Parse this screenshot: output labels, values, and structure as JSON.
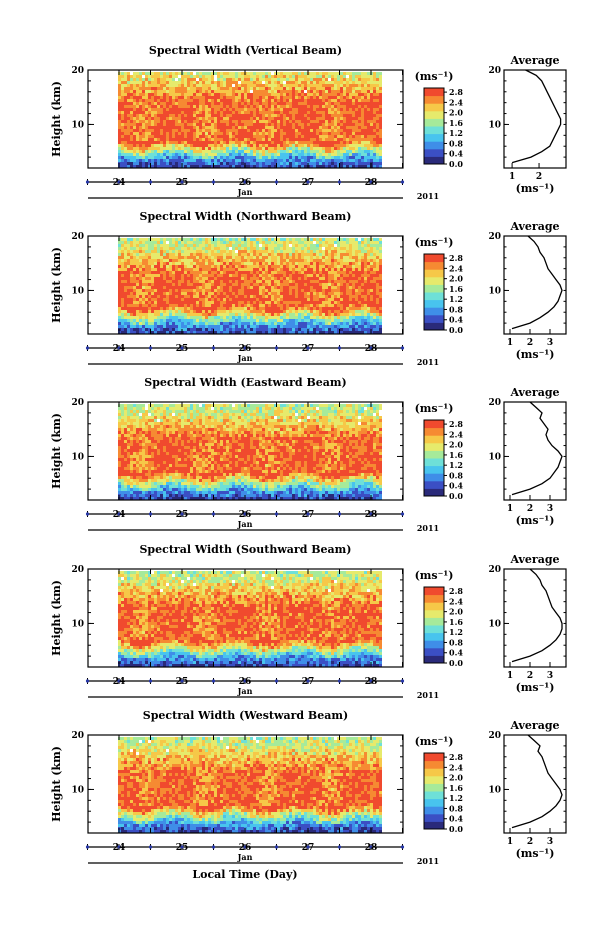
{
  "figure": {
    "ylabel": "Height (km)",
    "xlabel": "Local Time (Day)",
    "month": "Jan",
    "year": "2011",
    "unit": "(ms⁻¹)",
    "avg_title": "Average",
    "avg_unit": "(ms⁻¹)",
    "colorbar_ticks": [
      "0.0",
      "0.4",
      "0.8",
      "1.2",
      "1.6",
      "2.0",
      "2.4",
      "2.8"
    ],
    "colorscale": [
      "#2a2a7a",
      "#3b4fc4",
      "#3f8ee8",
      "#48c4ee",
      "#6ee0d8",
      "#a6ea9a",
      "#e6ea6c",
      "#f6c848",
      "#f68a32",
      "#f04a2e"
    ]
  },
  "chart_data": [
    {
      "type": "heatmap",
      "title": "Spectral Width (Vertical Beam)",
      "xlabel": "Local Time (Day)",
      "ylabel": "Height (km)",
      "x_ticks": [
        "24",
        "25",
        "26",
        "27",
        "28"
      ],
      "y_ticks": [
        "10",
        "20"
      ],
      "ylim": [
        2,
        20
      ],
      "colorbar": {
        "label": "(ms⁻¹)",
        "range": [
          0,
          2.8
        ]
      },
      "average_profile": {
        "title": "Average",
        "xlabel": "(ms⁻¹)",
        "x_ticks": [
          "1",
          "2"
        ],
        "y_ticks": [
          "10",
          "20"
        ],
        "height": [
          3,
          4,
          5,
          6,
          7,
          8,
          9,
          10,
          11,
          12,
          13,
          14,
          15,
          16,
          17,
          18,
          19,
          20
        ],
        "width": [
          1.0,
          1.7,
          2.1,
          2.4,
          2.5,
          2.6,
          2.7,
          2.8,
          2.8,
          2.7,
          2.6,
          2.5,
          2.4,
          2.3,
          2.2,
          2.1,
          1.9,
          1.5
        ]
      }
    },
    {
      "type": "heatmap",
      "title": "Spectral Width (Northward Beam)",
      "xlabel": "Local Time (Day)",
      "ylabel": "Height (km)",
      "x_ticks": [
        "24",
        "25",
        "26",
        "27",
        "28"
      ],
      "y_ticks": [
        "10",
        "20"
      ],
      "ylim": [
        2,
        20
      ],
      "colorbar": {
        "label": "(ms⁻¹)",
        "range": [
          0,
          2.8
        ]
      },
      "average_profile": {
        "title": "Average",
        "xlabel": "(ms⁻¹)",
        "x_ticks": [
          "1",
          "2",
          "3"
        ],
        "y_ticks": [
          "10",
          "20"
        ],
        "height": [
          3,
          4,
          5,
          6,
          7,
          8,
          9,
          10,
          11,
          12,
          13,
          14,
          15,
          16,
          17,
          18,
          19,
          20
        ],
        "width": [
          1.1,
          2.0,
          2.5,
          2.9,
          3.2,
          3.4,
          3.5,
          3.6,
          3.5,
          3.3,
          3.1,
          2.9,
          2.8,
          2.7,
          2.5,
          2.4,
          2.2,
          1.9
        ]
      }
    },
    {
      "type": "heatmap",
      "title": "Spectral Width (Eastward Beam)",
      "xlabel": "Local Time (Day)",
      "ylabel": "Height (km)",
      "x_ticks": [
        "24",
        "25",
        "26",
        "27",
        "28"
      ],
      "y_ticks": [
        "10",
        "20"
      ],
      "ylim": [
        2,
        20
      ],
      "colorbar": {
        "label": "(ms⁻¹)",
        "range": [
          0,
          2.8
        ]
      },
      "average_profile": {
        "title": "Average",
        "xlabel": "(ms⁻¹)",
        "x_ticks": [
          "1",
          "2",
          "3"
        ],
        "y_ticks": [
          "10",
          "20"
        ],
        "height": [
          3,
          4,
          5,
          6,
          7,
          8,
          9,
          10,
          11,
          12,
          13,
          14,
          15,
          16,
          17,
          18,
          19,
          20
        ],
        "width": [
          1.1,
          2.0,
          2.6,
          3.0,
          3.2,
          3.4,
          3.5,
          3.6,
          3.4,
          3.1,
          2.9,
          2.8,
          2.9,
          2.7,
          2.5,
          2.6,
          2.3,
          2.0
        ]
      }
    },
    {
      "type": "heatmap",
      "title": "Spectral Width (Southward Beam)",
      "xlabel": "Local Time (Day)",
      "ylabel": "Height (km)",
      "x_ticks": [
        "24",
        "25",
        "26",
        "27",
        "28"
      ],
      "y_ticks": [
        "10",
        "20"
      ],
      "ylim": [
        2,
        20
      ],
      "colorbar": {
        "label": "(ms⁻¹)",
        "range": [
          0,
          2.8
        ]
      },
      "average_profile": {
        "title": "Average",
        "xlabel": "(ms⁻¹)",
        "x_ticks": [
          "1",
          "2",
          "3"
        ],
        "y_ticks": [
          "10",
          "20"
        ],
        "height": [
          3,
          4,
          5,
          6,
          7,
          8,
          9,
          10,
          11,
          12,
          13,
          14,
          15,
          16,
          17,
          18,
          19,
          20
        ],
        "width": [
          1.1,
          2.0,
          2.6,
          3.0,
          3.3,
          3.5,
          3.6,
          3.6,
          3.5,
          3.3,
          3.1,
          3.0,
          2.9,
          2.8,
          2.6,
          2.5,
          2.3,
          2.0
        ]
      }
    },
    {
      "type": "heatmap",
      "title": "Spectral Width (Westward Beam)",
      "xlabel": "Local Time (Day)",
      "ylabel": "Height (km)",
      "x_ticks": [
        "24",
        "25",
        "26",
        "27",
        "28"
      ],
      "y_ticks": [
        "10",
        "20"
      ],
      "ylim": [
        2,
        20
      ],
      "colorbar": {
        "label": "(ms⁻¹)",
        "range": [
          0,
          2.8
        ]
      },
      "average_profile": {
        "title": "Average",
        "xlabel": "(ms⁻¹)",
        "x_ticks": [
          "1",
          "2",
          "3"
        ],
        "y_ticks": [
          "10",
          "20"
        ],
        "height": [
          3,
          4,
          5,
          6,
          7,
          8,
          9,
          10,
          11,
          12,
          13,
          14,
          15,
          16,
          17,
          18,
          19,
          20
        ],
        "width": [
          1.1,
          2.0,
          2.6,
          3.0,
          3.3,
          3.5,
          3.6,
          3.5,
          3.3,
          3.1,
          2.9,
          2.8,
          2.7,
          2.6,
          2.4,
          2.5,
          2.2,
          1.9
        ]
      }
    }
  ]
}
